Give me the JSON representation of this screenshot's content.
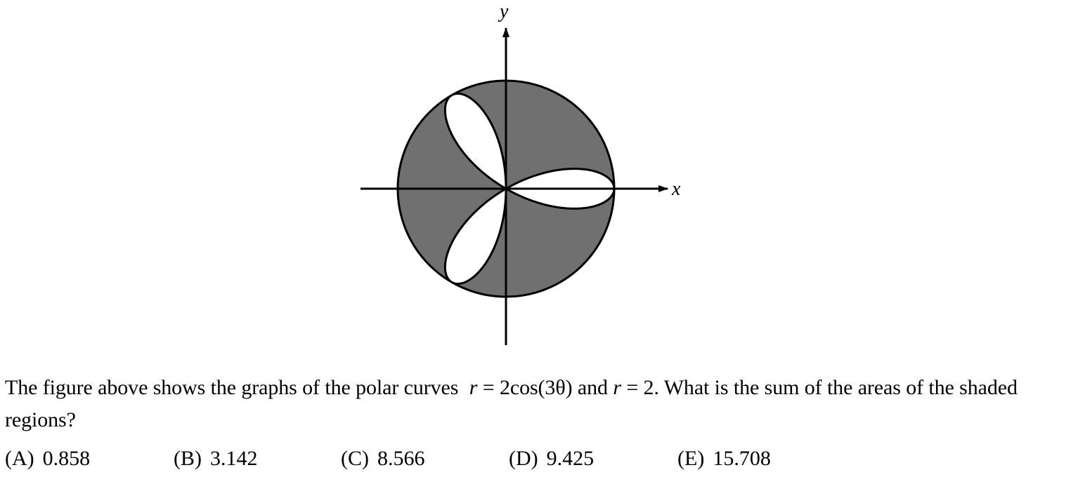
{
  "figure": {
    "x_axis_label": "x",
    "y_axis_label": "y",
    "colors": {
      "shaded": "#707070",
      "petals": "#ffffff",
      "stroke": "#000000"
    }
  },
  "question": {
    "text_before": "The figure above shows the graphs of the polar curves",
    "eq1_var": "r",
    "eq1_eq": "=",
    "eq1_rhs": "2cos(3θ)",
    "connector": "and",
    "eq2_var": "r",
    "eq2_eq": "=",
    "eq2_rhs": "2.",
    "text_after": "What is the sum of the areas of the shaded regions?"
  },
  "choices": [
    {
      "letter": "(A)",
      "value": "0.858"
    },
    {
      "letter": "(B)",
      "value": "3.142"
    },
    {
      "letter": "(C)",
      "value": "8.566"
    },
    {
      "letter": "(D)",
      "value": "9.425"
    },
    {
      "letter": "(E)",
      "value": "15.708"
    }
  ]
}
